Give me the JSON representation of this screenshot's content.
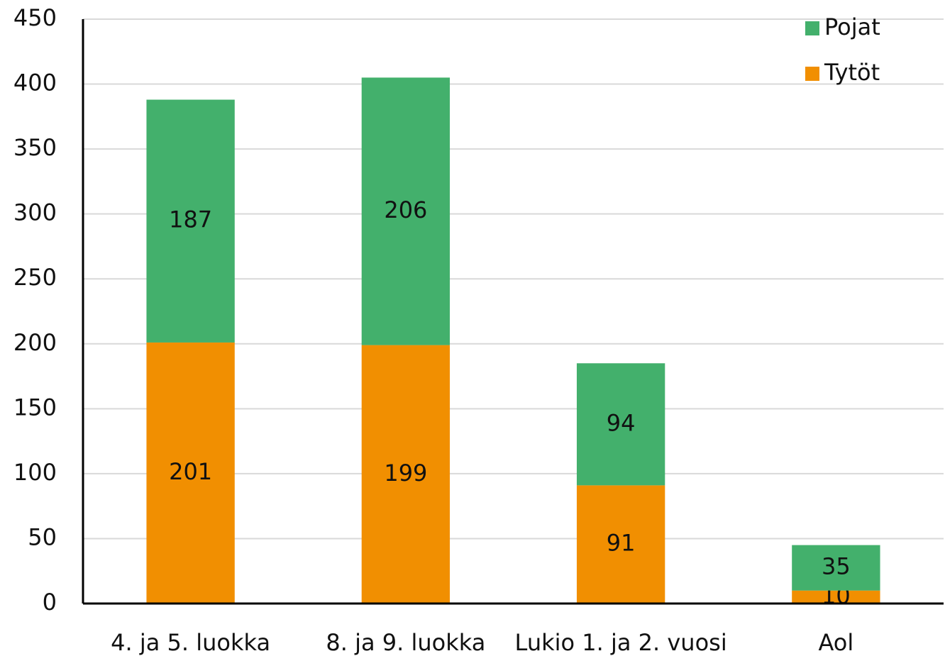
{
  "chart_data": {
    "type": "stacked_bar",
    "categories": [
      "4. ja 5. luokka",
      "8. ja 9. luokka",
      "Lukio 1. ja 2. vuosi",
      "Aol"
    ],
    "series": [
      {
        "name": "Tytöt",
        "color": "#f18f01",
        "values": [
          201,
          199,
          91,
          10
        ]
      },
      {
        "name": "Pojat",
        "color": "#43b06c",
        "values": [
          187,
          206,
          94,
          35
        ]
      }
    ],
    "ylim": [
      0,
      450
    ],
    "yticks": [
      0,
      50,
      100,
      150,
      200,
      250,
      300,
      350,
      400,
      450
    ],
    "grid": true,
    "legend": "top-right"
  }
}
